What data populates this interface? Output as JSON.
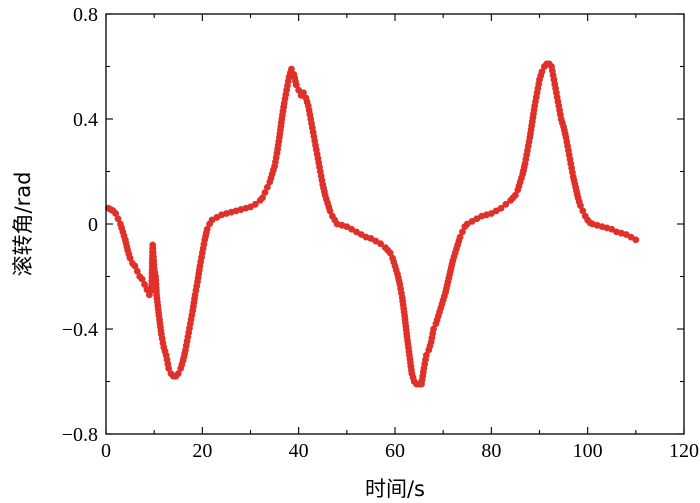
{
  "chart_data": {
    "type": "scatter",
    "xlabel": "时间/s",
    "ylabel": "滚转角/rad",
    "xlim": [
      0,
      120
    ],
    "ylim": [
      -0.8,
      0.8
    ],
    "x_ticks": [
      "0",
      "20",
      "40",
      "60",
      "80",
      "100",
      "120"
    ],
    "y_ticks": [
      "−0.8",
      "−0.4",
      "0",
      "0.4",
      "0.8"
    ],
    "marker_color": "#e0302a",
    "grid": false,
    "series": [
      {
        "values": [
          [
            0.5,
            0.06
          ],
          [
            1,
            0.055
          ],
          [
            1.5,
            0.05
          ],
          [
            2,
            0.04
          ],
          [
            2.5,
            0.02
          ],
          [
            3,
            0.0
          ],
          [
            3.5,
            -0.03
          ],
          [
            4,
            -0.06
          ],
          [
            4.5,
            -0.1
          ],
          [
            5,
            -0.13
          ],
          [
            5.5,
            -0.15
          ],
          [
            6,
            -0.16
          ],
          [
            6.5,
            -0.18
          ],
          [
            7,
            -0.2
          ],
          [
            7.5,
            -0.21
          ],
          [
            8,
            -0.23
          ],
          [
            8.5,
            -0.25
          ],
          [
            9,
            -0.27
          ],
          [
            9.5,
            -0.23
          ],
          [
            9.7,
            -0.08
          ],
          [
            10,
            -0.17
          ],
          [
            10.3,
            -0.2
          ],
          [
            10.5,
            -0.27
          ],
          [
            11,
            -0.35
          ],
          [
            11.5,
            -0.42
          ],
          [
            12,
            -0.47
          ],
          [
            12.5,
            -0.5
          ],
          [
            13,
            -0.55
          ],
          [
            13.5,
            -0.57
          ],
          [
            14,
            -0.58
          ],
          [
            14.5,
            -0.58
          ],
          [
            15,
            -0.57
          ],
          [
            15.5,
            -0.55
          ],
          [
            16,
            -0.52
          ],
          [
            16.5,
            -0.48
          ],
          [
            17,
            -0.43
          ],
          [
            17.5,
            -0.38
          ],
          [
            18,
            -0.33
          ],
          [
            18.5,
            -0.27
          ],
          [
            19,
            -0.22
          ],
          [
            19.5,
            -0.16
          ],
          [
            20,
            -0.11
          ],
          [
            20.5,
            -0.06
          ],
          [
            21,
            -0.02
          ],
          [
            21.5,
            0.0
          ],
          [
            22,
            0.015
          ],
          [
            23,
            0.025
          ],
          [
            24,
            0.035
          ],
          [
            25,
            0.04
          ],
          [
            26,
            0.045
          ],
          [
            27,
            0.05
          ],
          [
            28,
            0.055
          ],
          [
            29,
            0.06
          ],
          [
            30,
            0.065
          ],
          [
            31,
            0.075
          ],
          [
            32,
            0.09
          ],
          [
            32.5,
            0.1
          ],
          [
            33,
            0.12
          ],
          [
            33.5,
            0.14
          ],
          [
            34,
            0.16
          ],
          [
            34.5,
            0.19
          ],
          [
            35,
            0.22
          ],
          [
            35.5,
            0.27
          ],
          [
            36,
            0.33
          ],
          [
            36.5,
            0.4
          ],
          [
            37,
            0.46
          ],
          [
            37.5,
            0.51
          ],
          [
            38,
            0.56
          ],
          [
            38.5,
            0.59
          ],
          [
            39,
            0.57
          ],
          [
            39.5,
            0.53
          ],
          [
            40,
            0.51
          ],
          [
            40.5,
            0.49
          ],
          [
            41,
            0.5
          ],
          [
            41.5,
            0.48
          ],
          [
            42,
            0.45
          ],
          [
            42.5,
            0.4
          ],
          [
            43,
            0.35
          ],
          [
            43.5,
            0.3
          ],
          [
            44,
            0.25
          ],
          [
            44.5,
            0.2
          ],
          [
            45,
            0.15
          ],
          [
            45.5,
            0.11
          ],
          [
            46,
            0.08
          ],
          [
            46.5,
            0.05
          ],
          [
            47,
            0.03
          ],
          [
            48,
            0.0
          ],
          [
            49,
            -0.005
          ],
          [
            50,
            -0.01
          ],
          [
            51,
            -0.02
          ],
          [
            52,
            -0.03
          ],
          [
            53,
            -0.04
          ],
          [
            54,
            -0.05
          ],
          [
            55,
            -0.055
          ],
          [
            56,
            -0.065
          ],
          [
            57,
            -0.075
          ],
          [
            58,
            -0.09
          ],
          [
            59,
            -0.11
          ],
          [
            59.5,
            -0.13
          ],
          [
            60,
            -0.16
          ],
          [
            60.5,
            -0.19
          ],
          [
            61,
            -0.23
          ],
          [
            61.5,
            -0.28
          ],
          [
            62,
            -0.35
          ],
          [
            62.5,
            -0.43
          ],
          [
            63,
            -0.5
          ],
          [
            63.5,
            -0.57
          ],
          [
            64,
            -0.6
          ],
          [
            64.5,
            -0.61
          ],
          [
            65,
            -0.61
          ],
          [
            65.5,
            -0.61
          ],
          [
            66,
            -0.55
          ],
          [
            66.5,
            -0.5
          ],
          [
            67,
            -0.48
          ],
          [
            67.5,
            -0.45
          ],
          [
            68,
            -0.4
          ],
          [
            68.5,
            -0.38
          ],
          [
            69,
            -0.35
          ],
          [
            69.5,
            -0.32
          ],
          [
            70,
            -0.29
          ],
          [
            70.5,
            -0.26
          ],
          [
            71,
            -0.22
          ],
          [
            71.5,
            -0.18
          ],
          [
            72,
            -0.14
          ],
          [
            72.5,
            -0.11
          ],
          [
            73,
            -0.08
          ],
          [
            73.5,
            -0.05
          ],
          [
            74,
            -0.03
          ],
          [
            74.5,
            -0.01
          ],
          [
            75,
            0.0
          ],
          [
            76,
            0.01
          ],
          [
            77,
            0.02
          ],
          [
            78,
            0.03
          ],
          [
            79,
            0.035
          ],
          [
            80,
            0.04
          ],
          [
            81,
            0.05
          ],
          [
            82,
            0.06
          ],
          [
            83,
            0.075
          ],
          [
            84,
            0.09
          ],
          [
            85,
            0.11
          ],
          [
            85.5,
            0.13
          ],
          [
            86,
            0.16
          ],
          [
            86.5,
            0.19
          ],
          [
            87,
            0.23
          ],
          [
            87.5,
            0.28
          ],
          [
            88,
            0.33
          ],
          [
            88.5,
            0.39
          ],
          [
            89,
            0.45
          ],
          [
            89.5,
            0.5
          ],
          [
            90,
            0.55
          ],
          [
            90.5,
            0.58
          ],
          [
            91,
            0.6
          ],
          [
            91.5,
            0.61
          ],
          [
            92,
            0.61
          ],
          [
            92.5,
            0.6
          ],
          [
            93,
            0.55
          ],
          [
            93.5,
            0.5
          ],
          [
            94,
            0.45
          ],
          [
            94.5,
            0.4
          ],
          [
            95,
            0.37
          ],
          [
            95.5,
            0.33
          ],
          [
            96,
            0.28
          ],
          [
            96.5,
            0.23
          ],
          [
            97,
            0.18
          ],
          [
            97.5,
            0.14
          ],
          [
            98,
            0.1
          ],
          [
            98.5,
            0.07
          ],
          [
            99,
            0.05
          ],
          [
            99.5,
            0.03
          ],
          [
            100,
            0.015
          ],
          [
            100.5,
            0.005
          ],
          [
            101,
            0.0
          ],
          [
            102,
            -0.005
          ],
          [
            103,
            -0.01
          ],
          [
            104,
            -0.015
          ],
          [
            105,
            -0.02
          ],
          [
            106,
            -0.03
          ],
          [
            107,
            -0.035
          ],
          [
            108,
            -0.04
          ],
          [
            109,
            -0.05
          ],
          [
            110,
            -0.06
          ]
        ]
      }
    ]
  }
}
